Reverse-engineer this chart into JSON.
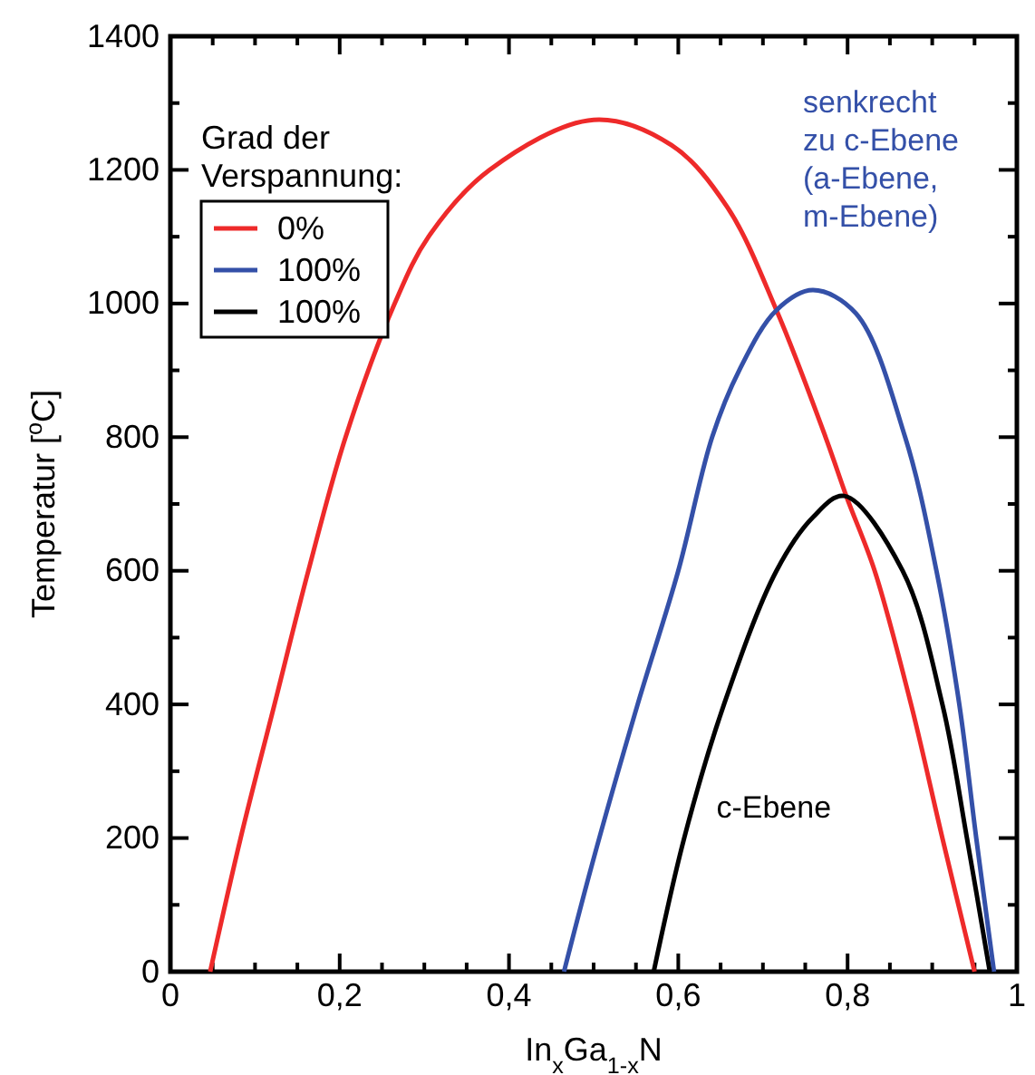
{
  "chart_data": {
    "type": "line",
    "xlabel": "In$_{x}$Ga$_{1-x}$N",
    "ylabel": "Temperatur [$^{o}$C]",
    "legend_title": "Grad der Verspannung:",
    "legend": "top left",
    "grid": false,
    "line_style": "solid",
    "marker": "none",
    "xlim": [
      0,
      1
    ],
    "ylim": [
      0,
      1400
    ],
    "xticks": [
      {
        "value": 0,
        "label": "0"
      },
      {
        "value": 0.05,
        "label": null
      },
      {
        "value": 0.1,
        "label": null
      },
      {
        "value": 0.15,
        "label": null
      },
      {
        "value": 0.2,
        "label": "0,2"
      },
      {
        "value": 0.25,
        "label": null
      },
      {
        "value": 0.3,
        "label": null
      },
      {
        "value": 0.35,
        "label": null
      },
      {
        "value": 0.4,
        "label": "0,4"
      },
      {
        "value": 0.45,
        "label": null
      },
      {
        "value": 0.5,
        "label": null
      },
      {
        "value": 0.55,
        "label": null
      },
      {
        "value": 0.6,
        "label": "0,6"
      },
      {
        "value": 0.65,
        "label": null
      },
      {
        "value": 0.7,
        "label": null
      },
      {
        "value": 0.75,
        "label": null
      },
      {
        "value": 0.8,
        "label": "0,8"
      },
      {
        "value": 0.85,
        "label": null
      },
      {
        "value": 0.9,
        "label": null
      },
      {
        "value": 0.95,
        "label": null
      },
      {
        "value": 1,
        "label": "1"
      }
    ],
    "yticks": [
      0,
      {
        "value": 100,
        "label": null
      },
      200,
      {
        "value": 300,
        "label": null
      },
      400,
      {
        "value": 500,
        "label": null
      },
      600,
      {
        "value": 700,
        "label": null
      },
      800,
      {
        "value": 900,
        "label": null
      },
      1000,
      {
        "value": 1100,
        "label": null
      },
      1200,
      {
        "value": 1300,
        "label": null
      },
      1400
    ],
    "series": [
      {
        "name": "0%",
        "color": "#ee2a2a",
        "x": [
          0.047,
          0.083,
          0.123,
          0.163,
          0.207,
          0.265,
          0.305,
          0.377,
          0.5,
          0.592,
          0.658,
          0.716,
          0.774,
          0.799,
          0.832,
          0.875,
          0.912,
          0.95
        ],
        "values": [
          0,
          200,
          400,
          600,
          800,
          1000,
          1100,
          1200,
          1275,
          1237,
          1144,
          990,
          800,
          710,
          600,
          400,
          200,
          0
        ]
      },
      {
        "name": "100%",
        "color": "#3450a8",
        "x": [
          0.465,
          0.498,
          0.552,
          0.6,
          0.64,
          0.672,
          0.716,
          0.759,
          0.81,
          0.868,
          0.905,
          0.932,
          0.952,
          0.973
        ],
        "values": [
          0,
          160,
          400,
          600,
          800,
          900,
          990,
          1020,
          985,
          800,
          600,
          400,
          200,
          0
        ]
      },
      {
        "name": "100%",
        "color": "#000000",
        "x": [
          0.571,
          0.607,
          0.654,
          0.716,
          0.759,
          0.796,
          0.865,
          0.912,
          0.941,
          0.968
        ],
        "values": [
          0,
          200,
          400,
          600,
          680,
          712,
          600,
          400,
          200,
          0
        ]
      }
    ],
    "annotations": [
      "senkrecht\nzu c-Ebene\n(a-Ebene,\nm-Ebene)",
      "c-Ebene"
    ]
  }
}
